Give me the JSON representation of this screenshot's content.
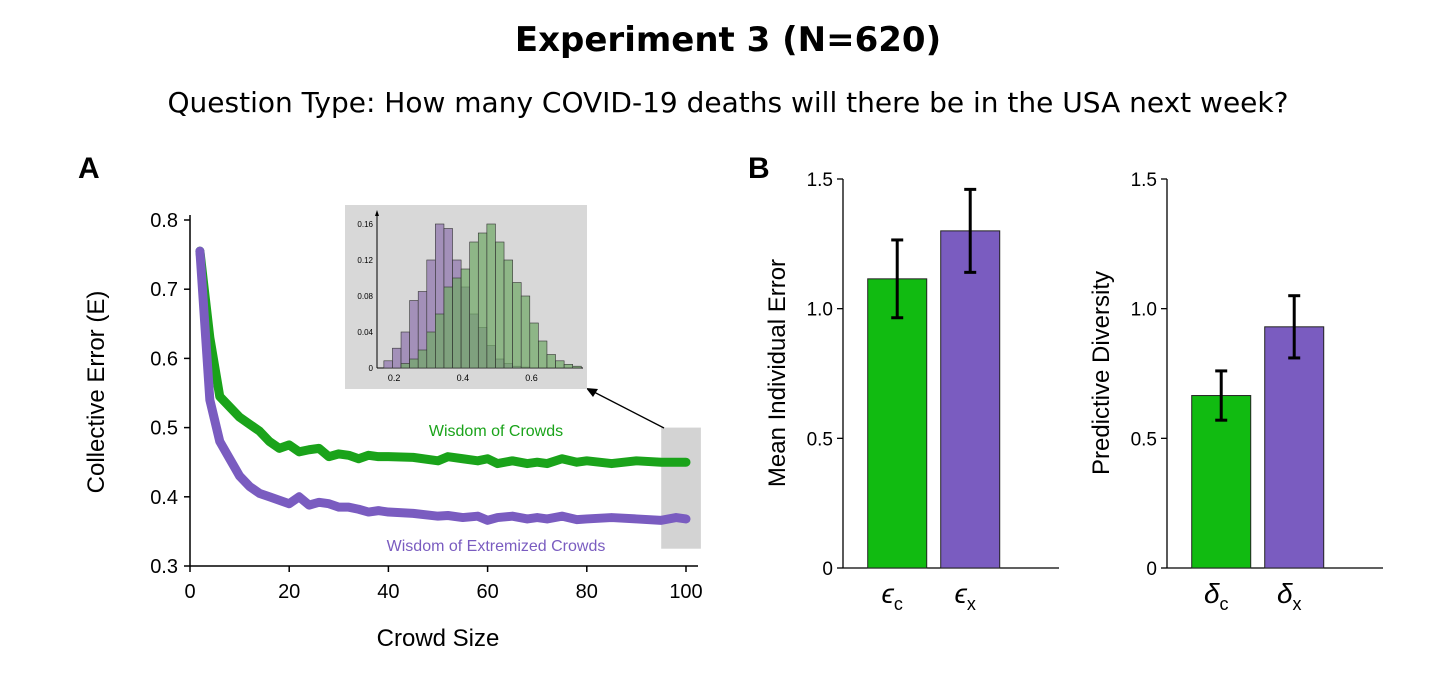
{
  "title": "Experiment 3 (N=620)",
  "subtitle": "Question Type: How many COVID-19 deaths will there be in the USA next week?",
  "chart_data": [
    {
      "panel": "A",
      "type": "line",
      "xlabel": "Crowd Size",
      "ylabel": "Collective Error (E)",
      "xlim": [
        0,
        100
      ],
      "ylim": [
        0.3,
        0.8
      ],
      "xticks": [
        0,
        20,
        40,
        60,
        80,
        100
      ],
      "yticks": [
        0.3,
        0.4,
        0.5,
        0.6,
        0.7,
        0.8
      ],
      "grid": false,
      "colors": {
        "wisdom": "#1aa31a",
        "extremized": "#7a5cc0",
        "highlight": "#d3d3d3"
      },
      "series": [
        {
          "name": "Wisdom of Crowds",
          "x": [
            2,
            4,
            6,
            8,
            10,
            12,
            14,
            16,
            18,
            20,
            22,
            24,
            26,
            28,
            30,
            32,
            34,
            36,
            38,
            40,
            45,
            50,
            52,
            55,
            58,
            60,
            62,
            65,
            68,
            70,
            72,
            75,
            78,
            80,
            85,
            90,
            95,
            98,
            100
          ],
          "values": [
            0.755,
            0.63,
            0.545,
            0.53,
            0.515,
            0.505,
            0.495,
            0.48,
            0.47,
            0.475,
            0.465,
            0.468,
            0.47,
            0.458,
            0.462,
            0.46,
            0.455,
            0.46,
            0.458,
            0.458,
            0.457,
            0.452,
            0.458,
            0.455,
            0.452,
            0.455,
            0.448,
            0.452,
            0.448,
            0.45,
            0.448,
            0.455,
            0.45,
            0.452,
            0.448,
            0.452,
            0.45,
            0.45,
            0.45
          ]
        },
        {
          "name": "Wisdom of Extremized Crowds",
          "x": [
            2,
            4,
            6,
            8,
            10,
            12,
            14,
            16,
            18,
            20,
            22,
            24,
            26,
            28,
            30,
            32,
            34,
            36,
            38,
            40,
            45,
            50,
            52,
            55,
            58,
            60,
            62,
            65,
            68,
            70,
            72,
            75,
            78,
            80,
            85,
            90,
            95,
            98,
            100
          ],
          "values": [
            0.755,
            0.54,
            0.48,
            0.455,
            0.43,
            0.415,
            0.405,
            0.4,
            0.395,
            0.39,
            0.4,
            0.388,
            0.392,
            0.39,
            0.385,
            0.385,
            0.382,
            0.378,
            0.38,
            0.378,
            0.376,
            0.372,
            0.373,
            0.37,
            0.372,
            0.366,
            0.37,
            0.372,
            0.368,
            0.37,
            0.368,
            0.372,
            0.367,
            0.368,
            0.37,
            0.368,
            0.366,
            0.37,
            0.368
          ]
        }
      ],
      "highlight_range": {
        "x": [
          95,
          103
        ],
        "y": [
          0.325,
          0.5
        ]
      },
      "inset": {
        "type": "histogram",
        "xticks": [
          0.2,
          0.4,
          0.6
        ],
        "yticks": [
          0,
          0.04,
          0.08,
          0.12,
          0.16
        ],
        "bin_start": 0.17,
        "bin_width": 0.025,
        "series": [
          {
            "values": [
              0.008,
              0.022,
              0.04,
              0.075,
              0.085,
              0.12,
              0.16,
              0.155,
              0.12,
              0.09,
              0.06,
              0.045,
              0.025,
              0.01,
              0.005,
              0.002,
              0.001,
              0,
              0,
              0,
              0,
              0,
              0
            ]
          },
          {
            "values": [
              0,
              0,
              0.005,
              0.01,
              0.02,
              0.04,
              0.06,
              0.09,
              0.1,
              0.11,
              0.14,
              0.15,
              0.16,
              0.14,
              0.12,
              0.095,
              0.08,
              0.05,
              0.03,
              0.015,
              0.008,
              0.004,
              0.002
            ]
          }
        ]
      }
    },
    {
      "panel": "B",
      "type": "bar",
      "ylabel": "Mean Individual Error",
      "ylim": [
        0,
        1.5
      ],
      "yticks": [
        0,
        0.5,
        1.0,
        1.5
      ],
      "ytick_labels": [
        "0",
        "0.5",
        "1.0",
        "1.5"
      ],
      "categories": [
        {
          "sym": "ϵ",
          "sub": "c"
        },
        {
          "sym": "ϵ",
          "sub": "x"
        }
      ],
      "values": [
        1.115,
        1.3
      ],
      "errors": [
        0.15,
        0.16
      ],
      "colors": [
        "#11bb11",
        "#7a5cc0"
      ]
    },
    {
      "panel": "",
      "type": "bar",
      "ylabel": "Predictive Diversity",
      "ylim": [
        0,
        1.5
      ],
      "yticks": [
        0,
        0.5,
        1.0,
        1.5
      ],
      "ytick_labels": [
        "0",
        "0.5",
        "1.0",
        "1.5"
      ],
      "categories": [
        {
          "sym": "δ",
          "sub": "c"
        },
        {
          "sym": "δ",
          "sub": "x"
        }
      ],
      "values": [
        0.665,
        0.93
      ],
      "errors": [
        0.095,
        0.12
      ],
      "colors": [
        "#11bb11",
        "#7a5cc0"
      ]
    }
  ]
}
